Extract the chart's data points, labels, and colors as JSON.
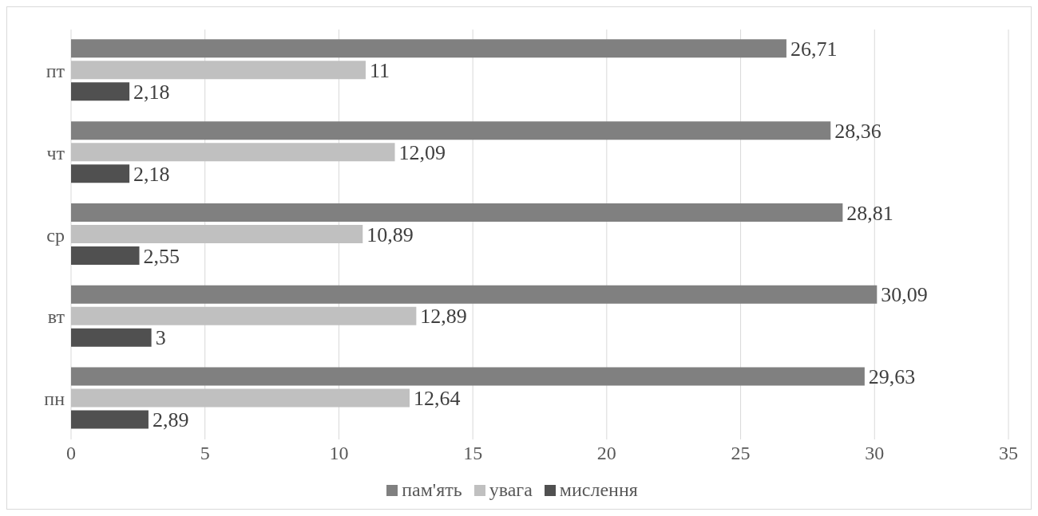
{
  "chart_data": {
    "type": "bar",
    "orientation": "horizontal",
    "categories": [
      "пт",
      "чт",
      "ср",
      "вт",
      "пн"
    ],
    "series": [
      {
        "name": "пам'ять",
        "color": "#808080",
        "values": [
          26.71,
          28.36,
          28.81,
          30.09,
          29.63
        ],
        "value_labels": [
          "26,71",
          "28,36",
          "28,81",
          "30,09",
          "29,63"
        ]
      },
      {
        "name": "увага",
        "color": "#c0c0c0",
        "values": [
          11,
          12.09,
          10.89,
          12.89,
          12.64
        ],
        "value_labels": [
          "11",
          "12,09",
          "10,89",
          "12,89",
          "12,64"
        ]
      },
      {
        "name": "мислення",
        "color": "#505050",
        "values": [
          2.18,
          2.18,
          2.55,
          3,
          2.89
        ],
        "value_labels": [
          "2,18",
          "2,18",
          "2,55",
          "3",
          "2,89"
        ]
      }
    ],
    "xlim": [
      0,
      35
    ],
    "xticks": [
      0,
      5,
      10,
      15,
      20,
      25,
      30,
      35
    ],
    "grid": "x",
    "legend": "bottom"
  }
}
